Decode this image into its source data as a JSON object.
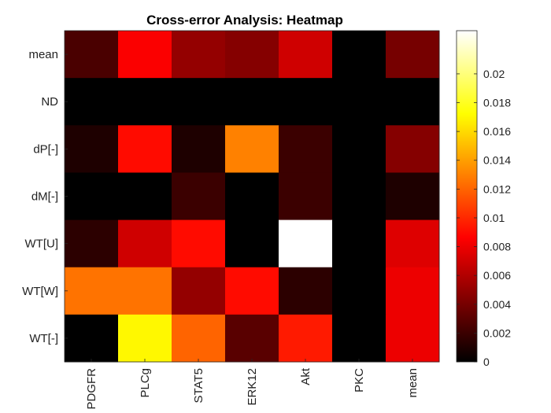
{
  "chart_data": {
    "type": "heatmap",
    "title": "Cross-error Analysis: Heatmap",
    "x_categories": [
      "PDGFR",
      "PLCg",
      "STAT5",
      "ERK12",
      "Akt",
      "PKC",
      "mean"
    ],
    "y_categories": [
      "mean",
      "ND",
      "dP[-]",
      "dM[-]",
      "WT[U]",
      "WT[W]",
      "WT[-]"
    ],
    "values": [
      [
        0.0025,
        0.0085,
        0.005,
        0.0045,
        0.007,
        0.0,
        0.004
      ],
      [
        0.0,
        0.0,
        0.0,
        0.0,
        0.0,
        0.0,
        0.0
      ],
      [
        0.001,
        0.009,
        0.001,
        0.013,
        0.002,
        0.0,
        0.0045
      ],
      [
        0.0,
        0.0,
        0.002,
        0.0,
        0.002,
        0.0,
        0.001
      ],
      [
        0.0015,
        0.007,
        0.009,
        0.0,
        0.023,
        0.0,
        0.0075
      ],
      [
        0.0125,
        0.0125,
        0.005,
        0.009,
        0.0015,
        0.0,
        0.008
      ],
      [
        0.0,
        0.017,
        0.012,
        0.003,
        0.0095,
        0.0,
        0.008
      ]
    ],
    "colormap": "hot",
    "color_range": [
      0,
      0.023
    ],
    "colorbar_ticks": [
      0,
      0.002,
      0.004,
      0.006,
      0.008,
      0.01,
      0.012,
      0.014,
      0.016,
      0.018,
      0.02
    ],
    "colorbar_tick_labels": [
      "0",
      "0.002",
      "0.004",
      "0.006",
      "0.008",
      "0.01",
      "0.012",
      "0.014",
      "0.016",
      "0.018",
      "0.02"
    ],
    "xlabel": "",
    "ylabel": "",
    "grid": false,
    "colorbar_position": "right"
  }
}
